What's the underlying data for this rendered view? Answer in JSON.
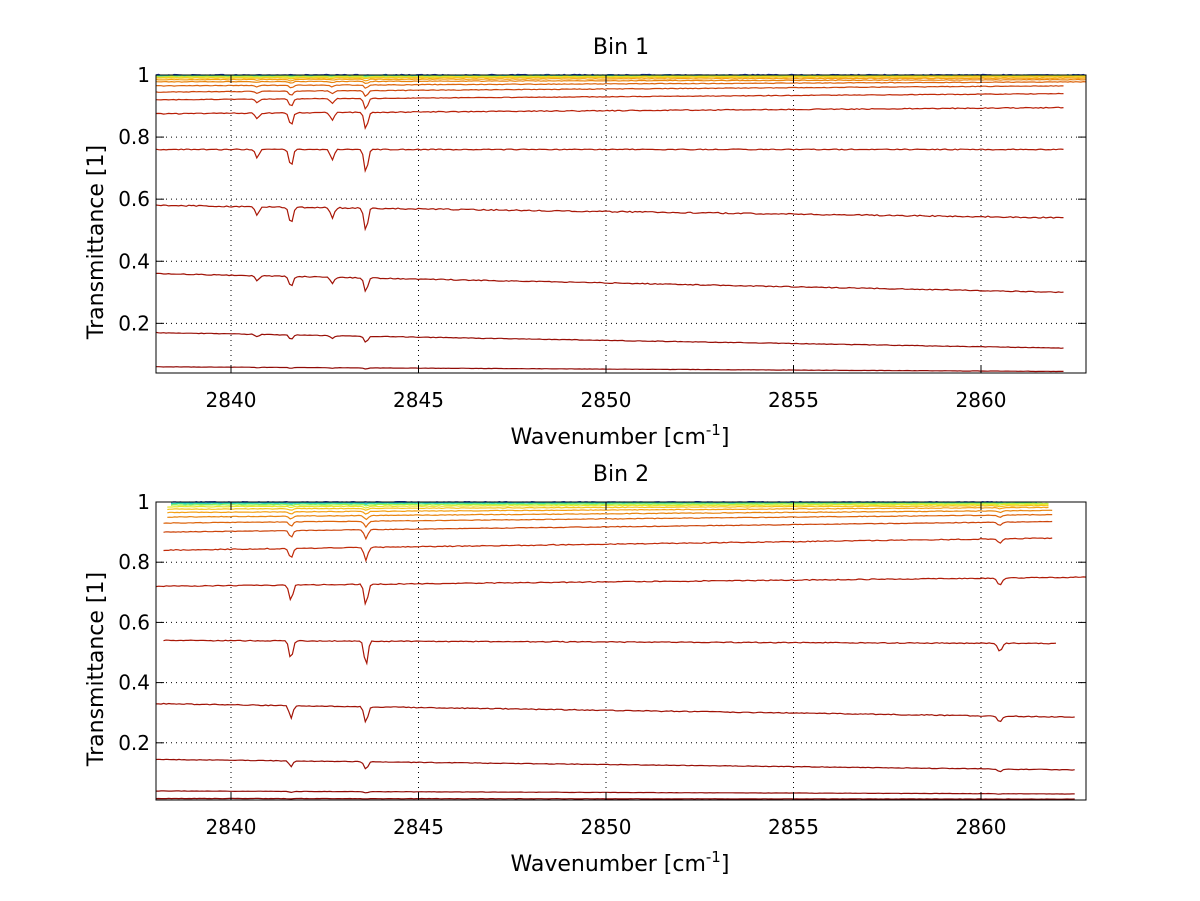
{
  "chart_data": [
    {
      "type": "line",
      "title": "Bin 1",
      "xlabel": "Wavenumber [cm",
      "xlabel_sup": "-1",
      "xlabel_close": "]",
      "ylabel": "Transmittance [1]",
      "xlim": [
        2838,
        2862.8
      ],
      "ylim": [
        0.04,
        1
      ],
      "x_ticks": [
        2840,
        2845,
        2850,
        2855,
        2860
      ],
      "x_tick_labels": [
        "2840",
        "2845",
        "2850",
        "2855",
        "2860"
      ],
      "y_ticks": [
        0.2,
        0.4,
        0.6,
        0.8,
        1
      ],
      "y_tick_labels": [
        "0.2",
        "0.4",
        "0.6",
        "0.8",
        "1"
      ],
      "grid": true,
      "absorption_lines_cm-1": [
        2840.7,
        2841.6,
        2842.7,
        2843.6
      ],
      "series": [
        {
          "color": "#1f3fd6",
          "start": 1.0,
          "end": 1.0,
          "x_end": 2862.8,
          "depth": 0.0,
          "noise": 0.004
        },
        {
          "color": "#18b6d8",
          "start": 0.998,
          "end": 0.999,
          "x_end": 2862.8,
          "depth": 0.001,
          "noise": 0.004
        },
        {
          "color": "#35e0a8",
          "start": 0.997,
          "end": 0.998,
          "x_end": 2862.8,
          "depth": 0.001,
          "noise": 0.003
        },
        {
          "color": "#a4f04a",
          "start": 0.995,
          "end": 0.997,
          "x_end": 2862.8,
          "depth": 0.002,
          "noise": 0.003
        },
        {
          "color": "#e8e62a",
          "start": 0.993,
          "end": 0.996,
          "x_end": 2862.8,
          "depth": 0.003,
          "noise": 0.002
        },
        {
          "color": "#f4c41c",
          "start": 0.99,
          "end": 0.994,
          "x_end": 2862.8,
          "depth": 0.004,
          "noise": 0.002
        },
        {
          "color": "#f4a014",
          "start": 0.985,
          "end": 0.99,
          "x_end": 2862.8,
          "depth": 0.006,
          "noise": 0.002
        },
        {
          "color": "#e8840e",
          "start": 0.978,
          "end": 0.985,
          "x_end": 2862.8,
          "depth": 0.008,
          "noise": 0.002
        },
        {
          "color": "#dc640c",
          "start": 0.965,
          "end": 0.978,
          "x_end": 2862.8,
          "depth": 0.012,
          "noise": 0.002
        },
        {
          "color": "#cc440a",
          "start": 0.945,
          "end": 0.965,
          "x_end": 2862.2,
          "depth": 0.02,
          "noise": 0.002
        },
        {
          "color": "#c02a08",
          "start": 0.92,
          "end": 0.94,
          "x_end": 2862.2,
          "depth": 0.035,
          "noise": 0.002
        },
        {
          "color": "#b81e06",
          "start": 0.875,
          "end": 0.895,
          "x_end": 2862.2,
          "depth": 0.055,
          "noise": 0.003
        },
        {
          "color": "#b01a06",
          "start": 0.76,
          "end": 0.76,
          "x_end": 2862.2,
          "depth": 0.075,
          "noise": 0.003
        },
        {
          "color": "#a81606",
          "start": 0.58,
          "end": 0.54,
          "x_end": 2862.2,
          "depth": 0.075,
          "noise": 0.004
        },
        {
          "color": "#a01206",
          "start": 0.36,
          "end": 0.3,
          "x_end": 2862.2,
          "depth": 0.045,
          "noise": 0.003
        },
        {
          "color": "#980e06",
          "start": 0.17,
          "end": 0.12,
          "x_end": 2862.2,
          "depth": 0.02,
          "noise": 0.002
        },
        {
          "color": "#900a06",
          "start": 0.06,
          "end": 0.045,
          "x_end": 2862.2,
          "depth": 0.004,
          "noise": 0.001
        }
      ]
    },
    {
      "type": "line",
      "title": "Bin 2",
      "xlabel": "Wavenumber [cm",
      "xlabel_sup": "-1",
      "xlabel_close": "]",
      "ylabel": "Transmittance [1]",
      "xlim": [
        2838,
        2862.8
      ],
      "ylim": [
        0.01,
        1
      ],
      "x_ticks": [
        2840,
        2845,
        2850,
        2855,
        2860
      ],
      "x_tick_labels": [
        "2840",
        "2845",
        "2850",
        "2855",
        "2860"
      ],
      "y_ticks": [
        0.2,
        0.4,
        0.6,
        0.8,
        1
      ],
      "y_tick_labels": [
        "0.2",
        "0.4",
        "0.6",
        "0.8",
        "1"
      ],
      "grid": true,
      "absorption_lines_cm-1": [
        2841.6,
        2843.6,
        2860.5
      ],
      "series": [
        {
          "color": "#1f3fd6",
          "start": 1.0,
          "end": 1.0,
          "x_start": 2838.4,
          "x_end": 2860.6,
          "depth": 0.0,
          "noise": 0.003
        },
        {
          "color": "#18b6d8",
          "start": 0.997,
          "end": 0.999,
          "x_start": 2838.4,
          "x_end": 2860.6,
          "depth": 0.001,
          "noise": 0.003
        },
        {
          "color": "#35e0a8",
          "start": 0.994,
          "end": 0.997,
          "x_start": 2838.4,
          "x_end": 2861.5,
          "depth": 0.002,
          "noise": 0.003
        },
        {
          "color": "#a4f04a",
          "start": 0.99,
          "end": 0.995,
          "x_start": 2838.4,
          "x_end": 2861.8,
          "depth": 0.003,
          "noise": 0.002
        },
        {
          "color": "#e8e62a",
          "start": 0.984,
          "end": 0.992,
          "x_start": 2838.3,
          "x_end": 2861.8,
          "depth": 0.005,
          "noise": 0.002
        },
        {
          "color": "#f4c41c",
          "start": 0.976,
          "end": 0.988,
          "x_start": 2838.3,
          "x_end": 2861.8,
          "depth": 0.007,
          "noise": 0.002
        },
        {
          "color": "#f4a014",
          "start": 0.965,
          "end": 0.982,
          "x_start": 2838.3,
          "x_end": 2861.8,
          "depth": 0.01,
          "noise": 0.002
        },
        {
          "color": "#e8840e",
          "start": 0.95,
          "end": 0.972,
          "x_start": 2838.3,
          "x_end": 2861.9,
          "depth": 0.014,
          "noise": 0.002
        },
        {
          "color": "#dc640c",
          "start": 0.93,
          "end": 0.958,
          "x_start": 2838.2,
          "x_end": 2861.9,
          "depth": 0.02,
          "noise": 0.002
        },
        {
          "color": "#cc440a",
          "start": 0.9,
          "end": 0.935,
          "x_start": 2838.2,
          "x_end": 2861.9,
          "depth": 0.03,
          "noise": 0.002
        },
        {
          "color": "#c02a08",
          "start": 0.84,
          "end": 0.88,
          "x_start": 2838.2,
          "x_end": 2861.9,
          "depth": 0.045,
          "noise": 0.003
        },
        {
          "color": "#b01a06",
          "start": 0.72,
          "end": 0.75,
          "x_start": 2838.0,
          "x_end": 2862.8,
          "depth": 0.07,
          "noise": 0.003
        },
        {
          "color": "#a81606",
          "start": 0.54,
          "end": 0.53,
          "x_start": 2838.2,
          "x_end": 2862.0,
          "depth": 0.08,
          "noise": 0.003
        },
        {
          "color": "#a01206",
          "start": 0.33,
          "end": 0.285,
          "x_start": 2838.0,
          "x_end": 2862.5,
          "depth": 0.055,
          "noise": 0.003
        },
        {
          "color": "#980e06",
          "start": 0.145,
          "end": 0.11,
          "x_start": 2838.0,
          "x_end": 2862.5,
          "depth": 0.025,
          "noise": 0.002
        },
        {
          "color": "#900a06",
          "start": 0.04,
          "end": 0.03,
          "x_start": 2838.0,
          "x_end": 2862.5,
          "depth": 0.004,
          "noise": 0.001
        },
        {
          "color": "#880806",
          "start": 0.015,
          "end": 0.013,
          "x_start": 2838.0,
          "x_end": 2862.5,
          "depth": 0.001,
          "noise": 0.001
        }
      ]
    }
  ]
}
